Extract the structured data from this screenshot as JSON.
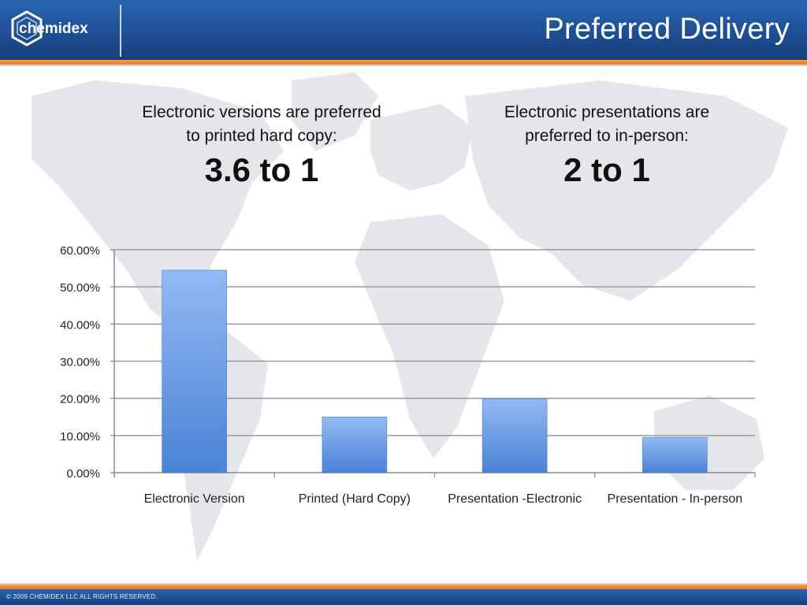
{
  "header": {
    "title": "Preferred Delivery",
    "logo_text": "chemidex"
  },
  "stats": [
    {
      "description": "Electronic versions are preferred\nto printed hard copy:",
      "ratio": "3.6 to 1"
    },
    {
      "description": "Electronic presentations are\npreferred to in-person:",
      "ratio": "2 to 1"
    }
  ],
  "chart_data": {
    "type": "bar",
    "title": "",
    "xlabel": "",
    "ylabel": "",
    "categories": [
      "Electronic Version",
      "Printed (Hard Copy)",
      "Presentation -Electronic",
      "Presentation - In-person"
    ],
    "values": [
      54.5,
      15.0,
      19.8,
      9.5
    ],
    "ylim": [
      0,
      60
    ],
    "yticks": [
      0,
      10,
      20,
      30,
      40,
      50,
      60
    ],
    "ytick_labels": [
      "0.00%",
      "10.00%",
      "20.00%",
      "30.00%",
      "40.00%",
      "50.00%",
      "60.00%"
    ],
    "grid": true,
    "legend": "none",
    "bar_color_top": "#93b9f3",
    "bar_color_bottom": "#4a83d6"
  },
  "footer": {
    "copyright": "© 2009 CHEMIDEX LLC ALL RIGHTS RESERVED."
  },
  "colors": {
    "brand_blue": "#1d4f94",
    "accent_orange": "#e5792a"
  }
}
